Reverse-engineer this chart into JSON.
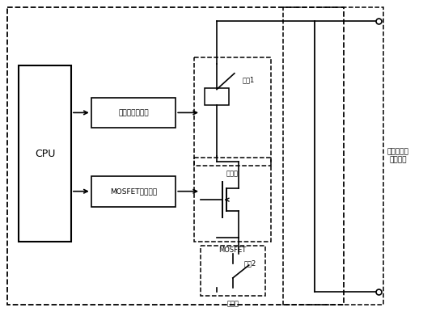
{
  "bg_color": "#ffffff",
  "lc": "#000000",
  "fig_width": 5.23,
  "fig_height": 3.91,
  "dpi": 100,
  "labels": {
    "cpu": "CPU",
    "relay_ctrl": "继电器控制信号",
    "mosfet_ctrl": "MOSFET控制信号",
    "jiedian1": "接点1",
    "jiedian2": "接点2",
    "jidianqi": "继电器",
    "mosfet_label": "MOSFET",
    "right_line1": "接点及二次",
    "right_line2": "起弹回路"
  }
}
